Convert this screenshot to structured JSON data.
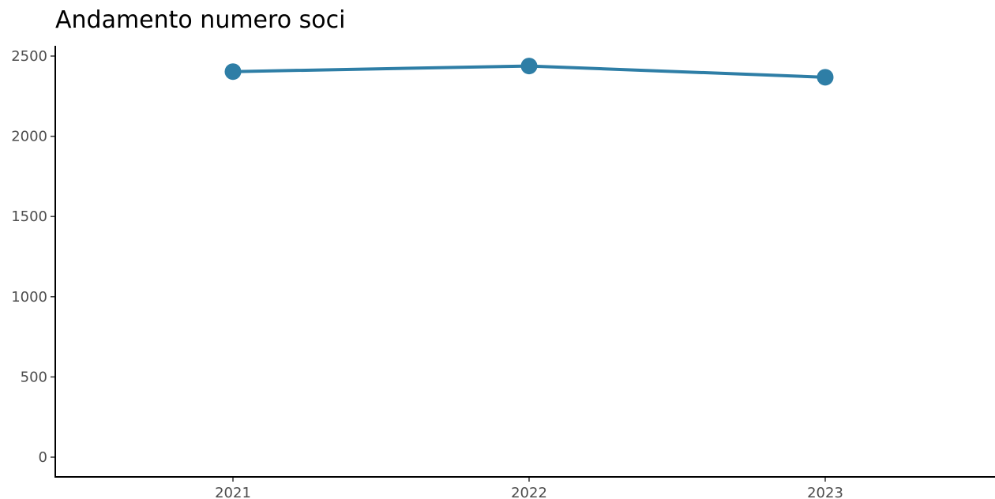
{
  "chart_data": {
    "type": "line",
    "title": "Andamento numero soci",
    "xlabel": "",
    "ylabel": "",
    "categories": [
      "2021",
      "2022",
      "2023"
    ],
    "series": [
      {
        "values": [
          2403,
          2438,
          2368
        ]
      }
    ],
    "ylim": [
      0,
      2500
    ],
    "yticks": [
      "0",
      "500",
      "1000",
      "1500",
      "2000",
      "2500"
    ],
    "grid": false,
    "legend": "none"
  },
  "colors": {
    "series": "#2e7ea6",
    "axis": "#000000",
    "tick_label": "#4d4d4d"
  }
}
